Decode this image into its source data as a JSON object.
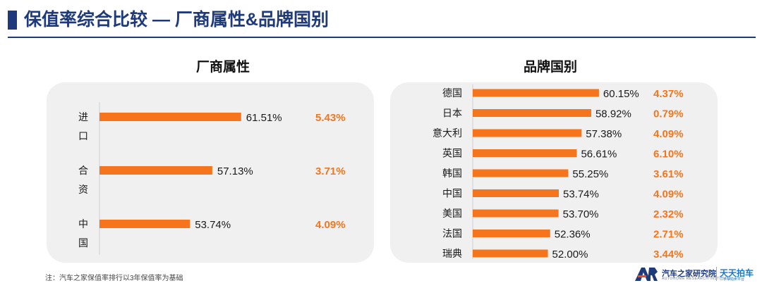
{
  "header": {
    "title": "保值率综合比较 — 厂商属性&品牌国别"
  },
  "footnote": "注：汽车之家保值率排行以3年保值率为基础",
  "logo": {
    "org_name": "汽车之家研究院",
    "org_sub": "AUTOHOME RESEARCH INSTITUTE",
    "brand_name": "天天拍车",
    "brand_sub": "二手车拍卖平台"
  },
  "colors": {
    "bar": "#f6751c",
    "title": "#1f3a7a",
    "panel": "#f0f0f0",
    "change": "#f6751c"
  },
  "chart_data": [
    {
      "type": "bar",
      "orientation": "horizontal",
      "title": "厂商属性",
      "categories": [
        "进口",
        "合资",
        "中国"
      ],
      "values": [
        61.51,
        57.13,
        53.74
      ],
      "value_labels": [
        "61.51%",
        "57.13%",
        "53.74%"
      ],
      "change_labels": [
        "5.43%",
        "3.71%",
        "4.09%"
      ],
      "xlim": [
        40,
        62.5
      ]
    },
    {
      "type": "bar",
      "orientation": "horizontal",
      "title": "品牌国别",
      "categories": [
        "德国",
        "日本",
        "意大利",
        "英国",
        "韩国",
        "中国",
        "美国",
        "法国",
        "瑞典"
      ],
      "values": [
        60.15,
        58.92,
        57.38,
        56.61,
        55.25,
        53.74,
        53.7,
        52.36,
        52.0
      ],
      "value_labels": [
        "60.15%",
        "58.92%",
        "57.38%",
        "56.61%",
        "55.25%",
        "53.74%",
        "53.70%",
        "52.36%",
        "52.00%"
      ],
      "change_labels": [
        "4.37%",
        "0.79%",
        "4.09%",
        "6.10%",
        "3.61%",
        "4.09%",
        "2.32%",
        "2.71%",
        "3.44%"
      ],
      "xlim": [
        40,
        61.4
      ]
    }
  ]
}
